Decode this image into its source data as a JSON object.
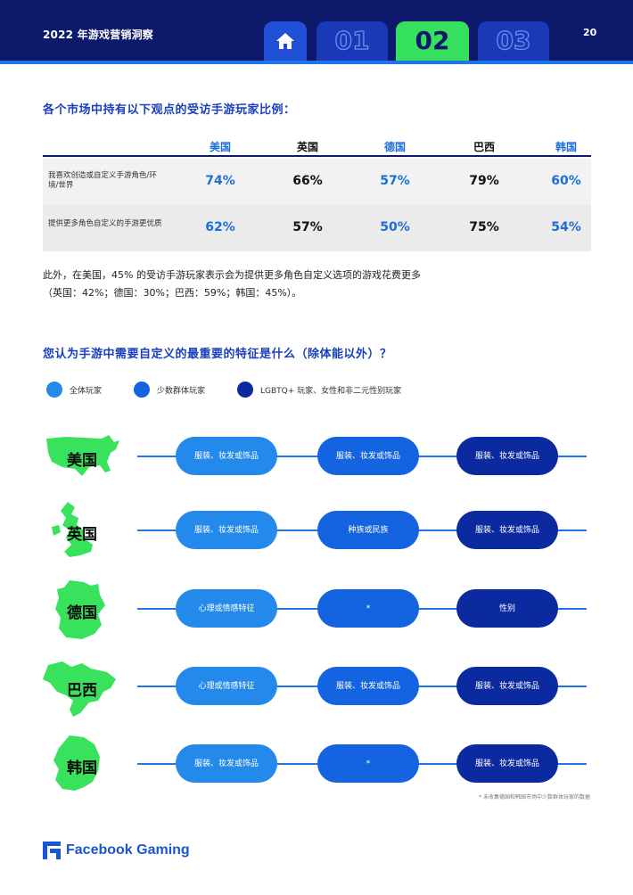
{
  "header": {
    "doc_title": "2022 年游戏营销洞察",
    "page_number": "20",
    "tabs": [
      {
        "icon": "home-icon"
      },
      {
        "label": "01"
      },
      {
        "label": "02",
        "active": true
      },
      {
        "label": "03"
      }
    ]
  },
  "section1": {
    "heading": "各个市场中持有以下观点的受访手游玩家比例：",
    "columns": [
      "美国",
      "英国",
      "德国",
      "巴西",
      "韩国"
    ],
    "rows": [
      {
        "label": "我喜欢创造或自定义手游角色/环境/世界",
        "values": [
          "74%",
          "66%",
          "57%",
          "79%",
          "60%"
        ]
      },
      {
        "label": "提供更多角色自定义的手游更优质",
        "values": [
          "62%",
          "57%",
          "50%",
          "75%",
          "54%"
        ]
      }
    ],
    "note_line1": "此外，在美国，45% 的受访手游玩家表示会为提供更多角色自定义选项的游戏花费更多",
    "note_line2": "（英国：42%；德国：30%；巴西：59%；韩国：45%）。"
  },
  "section2": {
    "heading": "您认为手游中需要自定义的最重要的特征是什么（除体能以外）？",
    "legend": [
      {
        "label": "全体玩家",
        "color": "#2389ea"
      },
      {
        "label": "少数群体玩家",
        "color": "#1463e0"
      },
      {
        "label": "LGBTQ+ 玩家、女性和非二元性别玩家",
        "color": "#0c2aa0"
      }
    ],
    "markets": [
      {
        "name": "美国",
        "values": [
          "服装、妆发或饰品",
          "服装、妆发或饰品",
          "服装、妆发或饰品"
        ]
      },
      {
        "name": "英国",
        "values": [
          "服装、妆发或饰品",
          "种族或民族",
          "服装、妆发或饰品"
        ]
      },
      {
        "name": "德国",
        "values": [
          "心理或情感特征",
          "*",
          "性别"
        ]
      },
      {
        "name": "巴西",
        "values": [
          "心理或情感特征",
          "服装、妆发或饰品",
          "服装、妆发或饰品"
        ]
      },
      {
        "name": "韩国",
        "values": [
          "服装、妆发或饰品",
          "*",
          "服装、妆发或饰品"
        ]
      }
    ],
    "map_color": "#39e25c",
    "footnote": "* 未收集德国和韩国市场中少数群体玩家的数据"
  },
  "footer": {
    "brand": "Facebook Gaming",
    "brand_color": "#1a55d6"
  }
}
